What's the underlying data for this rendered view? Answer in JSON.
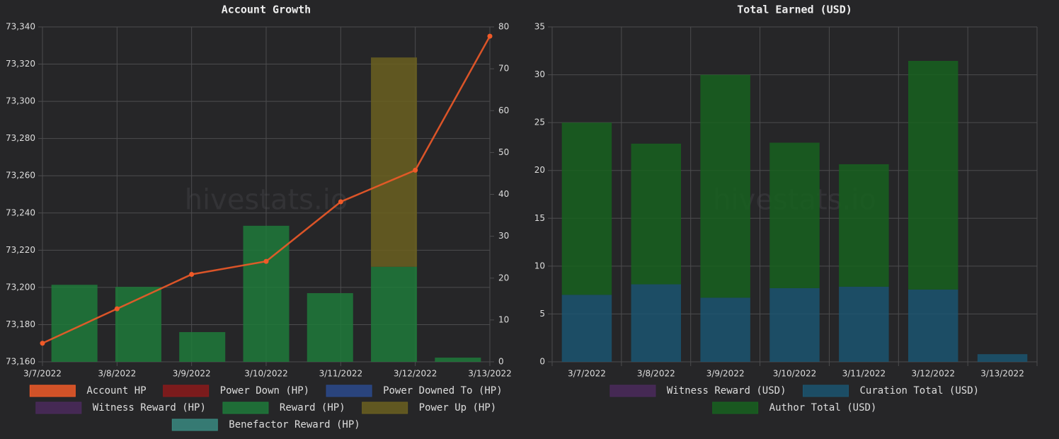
{
  "chart_data": [
    {
      "type": "combo",
      "title": "Account Growth",
      "watermark": "hivestats.io",
      "categories": [
        "3/7/2022",
        "3/8/2022",
        "3/9/2022",
        "3/10/2022",
        "3/11/2022",
        "3/12/2022",
        "3/13/2022"
      ],
      "series": [
        {
          "name": "Account HP",
          "type": "line",
          "color": "#f05a28",
          "axis": "y",
          "values": [
            73170,
            73188.5,
            73207,
            73214,
            73246,
            73263,
            73335
          ]
        },
        {
          "name": "Power Down (HP)",
          "type": "bar",
          "color": "#8b1a1a",
          "axis": "y2",
          "values": [
            0,
            0,
            0,
            0,
            0,
            0,
            0
          ]
        },
        {
          "name": "Power Downed To (HP)",
          "type": "bar",
          "color": "#2b4a8c",
          "axis": "y2",
          "values": [
            0,
            0,
            0,
            0,
            0,
            0,
            0
          ]
        },
        {
          "name": "Witness Reward (HP)",
          "type": "bar",
          "color": "#4b2a5c",
          "axis": "y2",
          "values": [
            0,
            0,
            0,
            0,
            0,
            0,
            0
          ]
        },
        {
          "name": "Reward (HP)",
          "type": "bar",
          "color": "#1e7a3a",
          "axis": "y2",
          "values": [
            18.4,
            17.9,
            7.1,
            32.5,
            16.4,
            22.7,
            1.0
          ]
        },
        {
          "name": "Power Up (HP)",
          "type": "bar",
          "color": "#6b6020",
          "axis": "y2",
          "values": [
            0,
            0,
            0,
            0,
            0,
            50,
            0
          ]
        },
        {
          "name": "Benefactor Reward (HP)",
          "type": "bar",
          "color": "#3a8a80",
          "axis": "y2",
          "values": [
            0,
            0,
            0,
            0,
            0,
            0,
            0
          ]
        }
      ],
      "ylim": [
        73160,
        73340
      ],
      "yticks": [
        {
          "value": 73160,
          "label": "73,160"
        },
        {
          "value": 73180,
          "label": "73,180"
        },
        {
          "value": 73200,
          "label": "73,200"
        },
        {
          "value": 73220,
          "label": "73,220"
        },
        {
          "value": 73240,
          "label": "73,240"
        },
        {
          "value": 73260,
          "label": "73,260"
        },
        {
          "value": 73280,
          "label": "73,280"
        },
        {
          "value": 73300,
          "label": "73,300"
        },
        {
          "value": 73320,
          "label": "73,320"
        },
        {
          "value": 73340,
          "label": "73,340"
        }
      ],
      "y2lim": [
        0,
        80
      ],
      "y2ticks": [
        0,
        10,
        20,
        30,
        40,
        50,
        60,
        70,
        80
      ],
      "stacked": true,
      "grid": true,
      "legend": "bottom"
    },
    {
      "type": "bar",
      "title": "Total Earned (USD)",
      "watermark": "hivestats.io",
      "categories": [
        "3/7/2022",
        "3/8/2022",
        "3/9/2022",
        "3/10/2022",
        "3/11/2022",
        "3/12/2022",
        "3/13/2022"
      ],
      "series": [
        {
          "name": "Witness Reward (USD)",
          "color": "#4b2a5c",
          "values": [
            0,
            0,
            0,
            0,
            0,
            0,
            0
          ]
        },
        {
          "name": "Curation Total (USD)",
          "color": "#1b5570",
          "values": [
            7.0,
            8.1,
            6.7,
            7.7,
            7.85,
            7.55,
            0.8
          ]
        },
        {
          "name": "Author Total (USD)",
          "color": "#17621f",
          "values": [
            18.0,
            14.7,
            23.3,
            15.2,
            12.8,
            23.9,
            0
          ]
        }
      ],
      "ylim": [
        0,
        35
      ],
      "yticks": [
        0,
        5,
        10,
        15,
        20,
        25,
        30,
        35
      ],
      "stacked": true,
      "grid": true,
      "legend": "bottom"
    }
  ]
}
